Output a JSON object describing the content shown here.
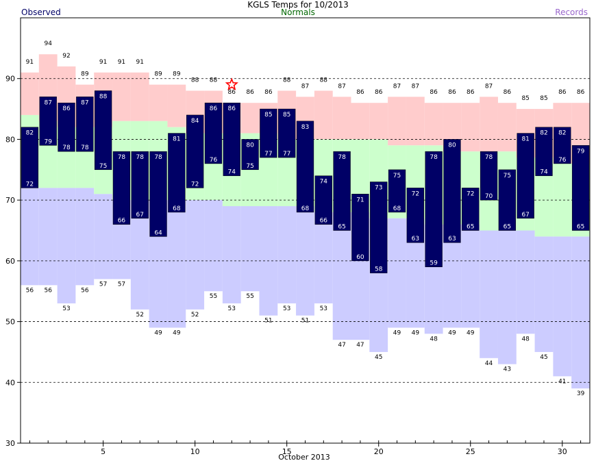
{
  "header": {
    "title": "KGLS Temps for 10/2013",
    "legend_observed": "Observed",
    "legend_normals": "Normals",
    "legend_records": "Records"
  },
  "colors": {
    "observed": "#000066",
    "normal_band": "#ccffcc",
    "record_high_band": "#ffcccc",
    "record_low_band": "#ccccff",
    "star": "#ff0000",
    "grid": "#000000"
  },
  "chart_data": {
    "type": "bar",
    "xlabel": "October 2013",
    "x_ticks": [
      5,
      10,
      15,
      20,
      25,
      30
    ],
    "y_ticks": [
      30,
      40,
      50,
      60,
      70,
      80,
      90
    ],
    "ylim": [
      30,
      100
    ],
    "xlim": [
      0.5,
      31.5
    ],
    "grid": "horizontal dashed at 40,50,60,70,80,90",
    "days": [
      1,
      2,
      3,
      4,
      5,
      6,
      7,
      8,
      9,
      10,
      11,
      12,
      13,
      14,
      15,
      16,
      17,
      18,
      19,
      20,
      21,
      22,
      23,
      24,
      25,
      26,
      27,
      28,
      29,
      30,
      31
    ],
    "observed_high": [
      82,
      87,
      86,
      87,
      88,
      78,
      78,
      78,
      81,
      84,
      86,
      86,
      80,
      85,
      85,
      83,
      74,
      78,
      71,
      73,
      75,
      72,
      78,
      80,
      72,
      78,
      75,
      81,
      82,
      82,
      79
    ],
    "observed_low": [
      72,
      79,
      78,
      78,
      75,
      66,
      67,
      64,
      68,
      72,
      76,
      74,
      75,
      77,
      77,
      68,
      66,
      65,
      60,
      58,
      68,
      63,
      59,
      63,
      65,
      70,
      65,
      67,
      74,
      76,
      65
    ],
    "record_high": [
      91,
      94,
      92,
      89,
      91,
      91,
      91,
      89,
      89,
      88,
      88,
      86,
      86,
      86,
      88,
      87,
      88,
      87,
      86,
      86,
      87,
      87,
      86,
      86,
      86,
      87,
      86,
      85,
      85,
      86,
      86
    ],
    "record_low": [
      56,
      56,
      53,
      56,
      57,
      57,
      52,
      49,
      49,
      52,
      55,
      53,
      55,
      51,
      53,
      51,
      53,
      47,
      47,
      45,
      49,
      49,
      48,
      49,
      49,
      44,
      43,
      48,
      45,
      41,
      39
    ],
    "normal_high": [
      84,
      83,
      82,
      82,
      82,
      83,
      83,
      83,
      82,
      81,
      81,
      81,
      81,
      81,
      80,
      80,
      80,
      80,
      80,
      80,
      79,
      79,
      79,
      78,
      78,
      78,
      78,
      77,
      77,
      76,
      76
    ],
    "normal_low": [
      72,
      72,
      72,
      72,
      71,
      70,
      70,
      70,
      70,
      70,
      70,
      69,
      69,
      69,
      69,
      69,
      68,
      68,
      68,
      67,
      67,
      67,
      66,
      66,
      66,
      65,
      65,
      65,
      64,
      64,
      64
    ],
    "record_set_markers": [
      {
        "day": 12,
        "value": 89
      }
    ]
  }
}
